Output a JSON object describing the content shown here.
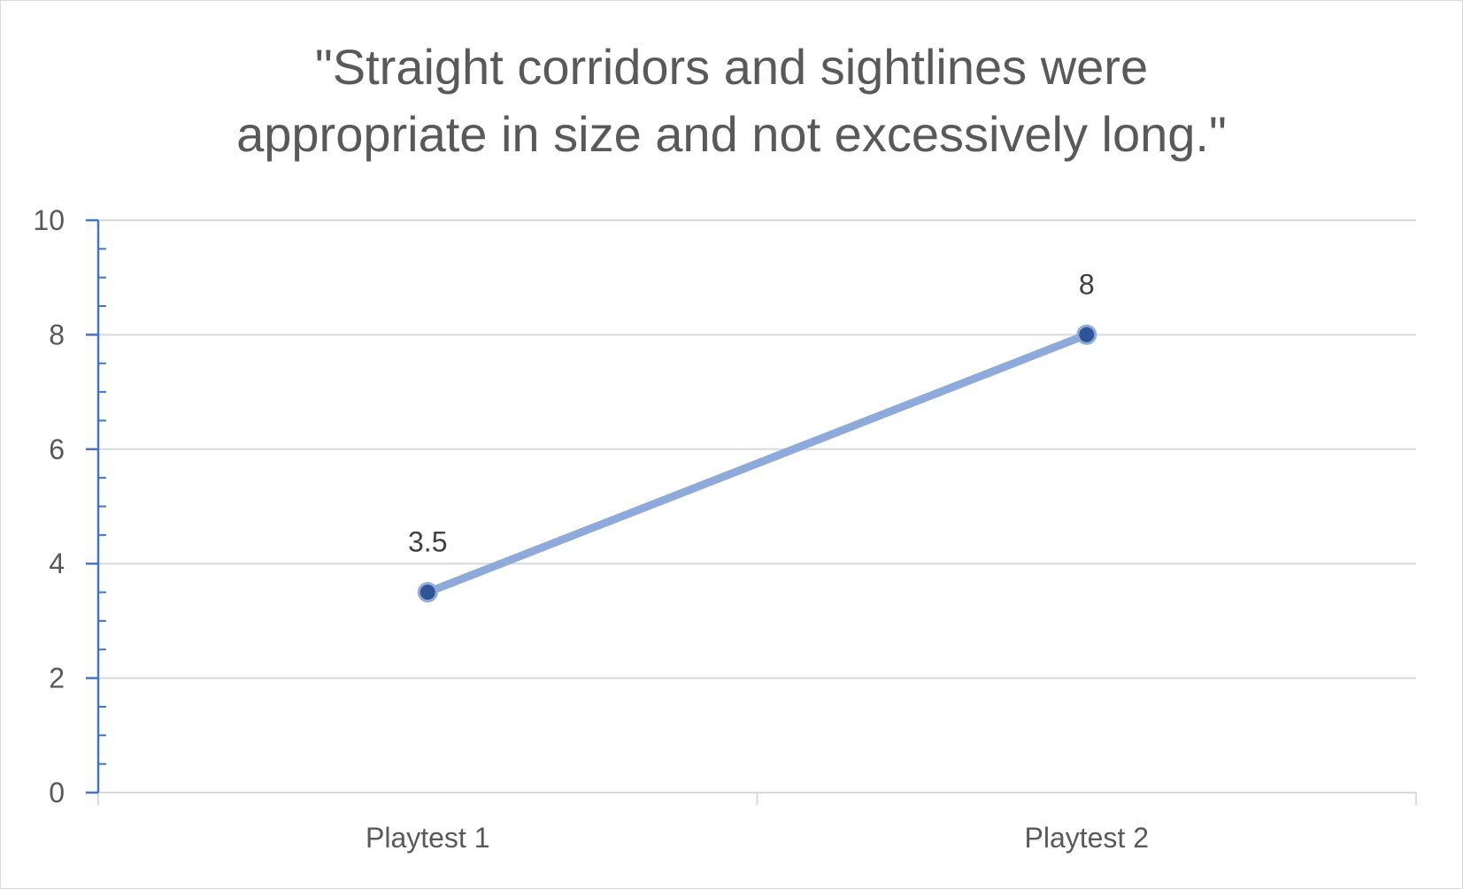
{
  "chart_data": {
    "type": "line",
    "title_lines": [
      "\"Straight corridors and sightlines were",
      "appropriate in size and not excessively long.\""
    ],
    "categories": [
      "Playtest 1",
      "Playtest 2"
    ],
    "series": [
      {
        "values": [
          3.5,
          8
        ],
        "data_labels": [
          "3.5",
          "8"
        ]
      }
    ],
    "ylim": [
      0,
      10
    ],
    "y_ticks": [
      0,
      2,
      4,
      6,
      8,
      10
    ],
    "y_tick_labels": [
      "0",
      "2",
      "4",
      "6",
      "8",
      "10"
    ],
    "y_minor_step": 0.5,
    "grid": true,
    "legend": "none",
    "colors": {
      "line": "#8eaadb",
      "marker_fill": "#2f5597",
      "marker_edge": "#8eaadb",
      "gridline": "#d9d9d9",
      "y_axis": "#4472c4",
      "x_axis": "#d9d9d9",
      "text": "#595959"
    }
  }
}
